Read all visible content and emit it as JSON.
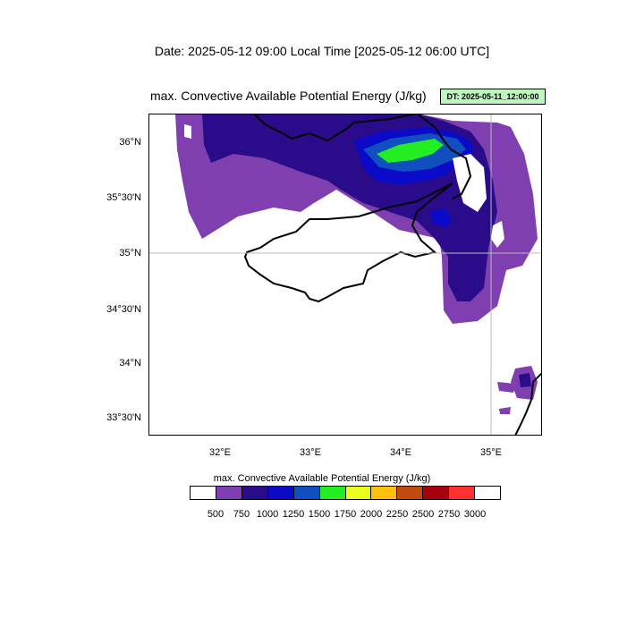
{
  "header": {
    "date_title": "Date: 2025-05-12  09:00 Local Time [2025-05-12  06:00 UTC]",
    "field_title": "max. Convective Available Potential Energy   (J/kg)",
    "dt_label": "DT: 2025-05-11_12:00:00"
  },
  "map": {
    "extent": {
      "lon_min": 31.25,
      "lon_max": 35.55,
      "lat_min": 33.33,
      "lat_max": 36.25
    },
    "lat_labels": [
      {
        "lat": 36.0,
        "label": "36°N"
      },
      {
        "lat": 35.5,
        "label": "35°30'N"
      },
      {
        "lat": 35.0,
        "label": "35°N"
      },
      {
        "lat": 34.5,
        "label": "34°30'N"
      },
      {
        "lat": 34.0,
        "label": "34°N"
      },
      {
        "lat": 33.5,
        "label": "33°30'N"
      }
    ],
    "lon_labels": [
      {
        "lon": 32.0,
        "label": "32°E"
      },
      {
        "lon": 33.0,
        "label": "33°E"
      },
      {
        "lon": 34.0,
        "label": "34°E"
      },
      {
        "lon": 35.0,
        "label": "35°E"
      }
    ],
    "gridline": {
      "lat": 35.0,
      "lon": 35.0
    }
  },
  "colorbar": {
    "title": "max. Convective Available Potential Energy  (J/kg)",
    "colors": [
      "#ffffff",
      "#7f3fb0",
      "#2a0c8a",
      "#0a0ac8",
      "#0f4fbf",
      "#22ee22",
      "#eaff1e",
      "#ffbf0f",
      "#c24c10",
      "#a80010",
      "#ff3030",
      "#ffffff"
    ],
    "labels": [
      "500",
      "750",
      "1000",
      "1250",
      "1500",
      "1750",
      "2000",
      "2250",
      "2500",
      "2750",
      "3000"
    ]
  }
}
